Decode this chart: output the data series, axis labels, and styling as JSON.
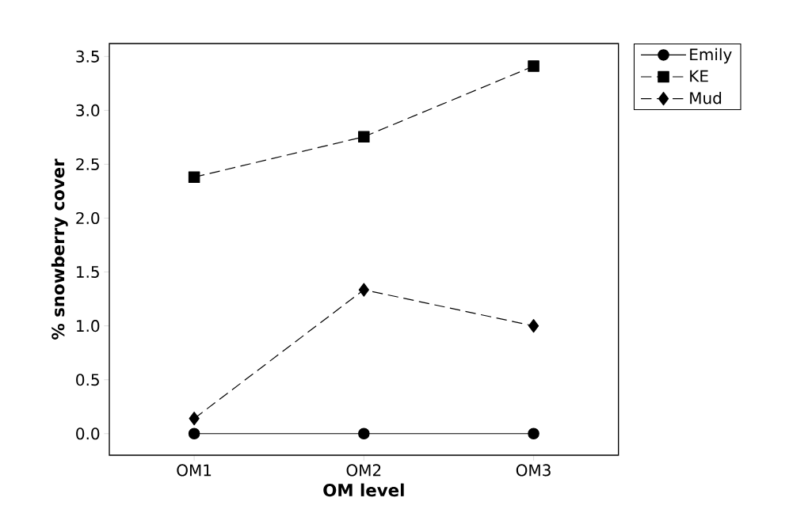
{
  "chart_data": {
    "type": "line",
    "xlabel": "OM level",
    "ylabel": "% snowberry cover",
    "categories": [
      "OM1",
      "OM2",
      "OM3"
    ],
    "series": [
      {
        "name": "Emily",
        "color": "#000000",
        "marker": "circle",
        "line_style": "solid",
        "values": [
          0,
          0,
          0
        ]
      },
      {
        "name": "KE",
        "color": "#000000",
        "marker": "square",
        "line_style": "dashed",
        "values": [
          2.38,
          2.755,
          3.41
        ]
      },
      {
        "name": "Mud",
        "color": "#000000",
        "marker": "diamond",
        "line_style": "dashed",
        "values": [
          0.14,
          1.335,
          1.0
        ]
      }
    ],
    "ylim": [
      -0.2,
      3.62
    ],
    "yticks": [
      {
        "value": 0,
        "label": "0.0"
      },
      0.5,
      {
        "value": 1,
        "label": "1.0"
      },
      1.5,
      {
        "value": 2,
        "label": "2.0"
      },
      2.5,
      {
        "value": 3,
        "label": "3.0"
      },
      3.5
    ],
    "grid": false,
    "legend": "top right"
  }
}
